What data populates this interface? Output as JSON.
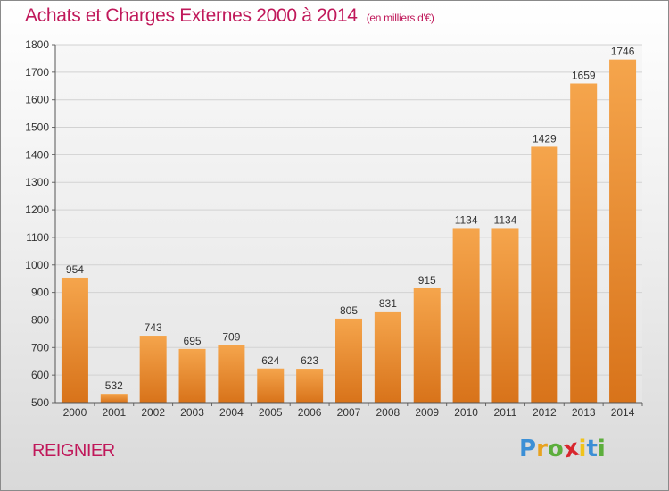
{
  "header": {
    "title": "Achats et Charges Externes 2000 à 2014",
    "subtitle": "(en milliers d'€)"
  },
  "footer": {
    "place": "REIGNIER",
    "logo_text": [
      "P",
      "r",
      "o",
      "x",
      "i",
      "t",
      "i"
    ],
    "logo_colors": [
      "#3b8fd6",
      "#e8a21f",
      "#5cae3c",
      "#d8262e",
      "#f0c31a",
      "#3b8fd6",
      "#5cae3c"
    ]
  },
  "chart_data": {
    "type": "bar",
    "categories": [
      "2000",
      "2001",
      "2002",
      "2003",
      "2004",
      "2005",
      "2006",
      "2007",
      "2008",
      "2009",
      "2010",
      "2011",
      "2012",
      "2013",
      "2014"
    ],
    "values": [
      954,
      532,
      743,
      695,
      709,
      624,
      623,
      805,
      831,
      915,
      1134,
      1134,
      1429,
      1659,
      1746
    ],
    "ylim": [
      500,
      1800
    ],
    "yticks": [
      500,
      600,
      700,
      800,
      900,
      1000,
      1100,
      1200,
      1300,
      1400,
      1500,
      1600,
      1700,
      1800
    ],
    "bar_color_top": "#f5a54c",
    "bar_color_bottom": "#d8731a",
    "grid": true,
    "legend": "none"
  }
}
